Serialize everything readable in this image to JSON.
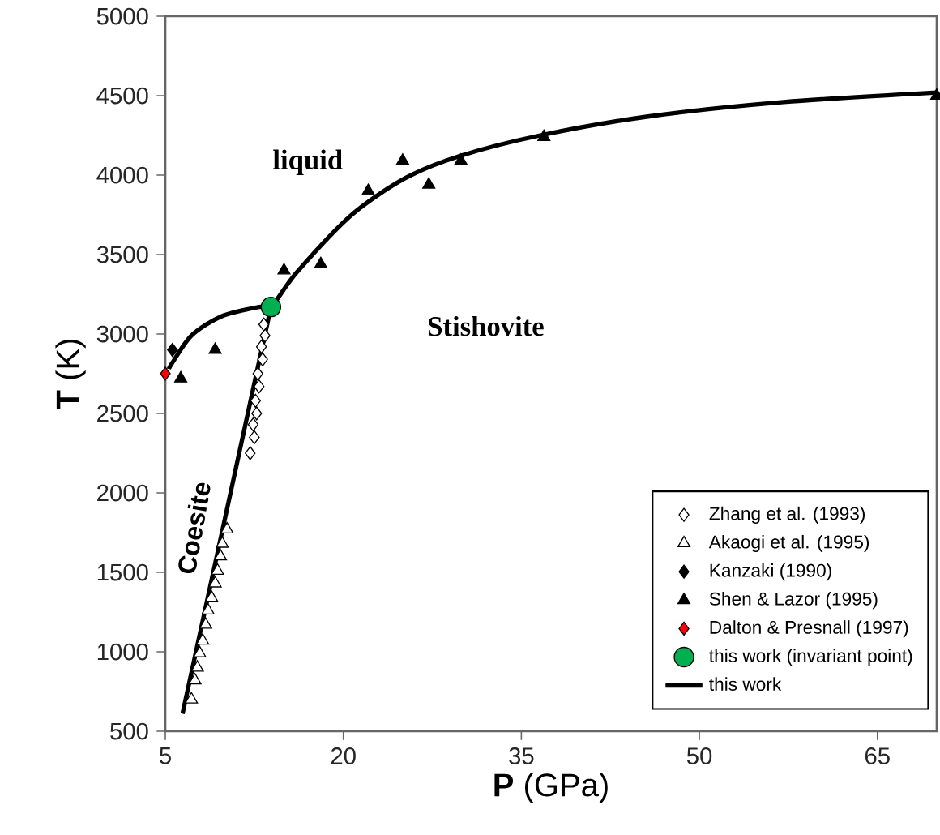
{
  "chart_data": {
    "type": "scatter",
    "xlabel": "**P** (GPa)",
    "ylabel": "**T**  (K)",
    "xlim": [
      5,
      70
    ],
    "xticks": [
      5,
      20,
      35,
      50,
      65
    ],
    "ylim": [
      500,
      5000
    ],
    "yticks": [
      500,
      1000,
      1500,
      2000,
      2500,
      3000,
      3500,
      4000,
      4500,
      5000
    ],
    "grid": false,
    "legend": "bottom right",
    "annotations": [
      "liquid",
      "Stishovite",
      "Coesite"
    ],
    "series": [
      {
        "name": "Zhang et al. (1993)",
        "marker": "diamond",
        "color": "#ffffff",
        "x": [
          12.15,
          12.5,
          12.4,
          12.7,
          12.6,
          12.9,
          12.8,
          13.2,
          13.1,
          13.4,
          13.3
        ],
        "values": [
          2250,
          2350,
          2430,
          2500,
          2580,
          2670,
          2750,
          2840,
          2920,
          2990,
          3060
        ]
      },
      {
        "name": "Akaogi et al. (1995)",
        "marker": "triangle",
        "color": "#ffffff",
        "x": [
          10.2,
          9.8,
          9.65,
          9.4,
          9.2,
          8.9,
          8.6,
          8.4,
          8.15,
          7.9,
          7.7,
          7.5,
          7.2
        ],
        "values": [
          1770,
          1680,
          1600,
          1510,
          1430,
          1340,
          1260,
          1170,
          1070,
          990,
          900,
          820,
          700
        ]
      },
      {
        "name": "Kanzaki (1990)",
        "marker": "diamond",
        "color": "#000000",
        "x": [
          5.6
        ],
        "values": [
          2900
        ]
      },
      {
        "name": "Shen & Lazor (1995)",
        "marker": "triangle",
        "color": "#000000",
        "x": [
          6.3,
          9.2,
          15.0,
          18.1,
          22.1,
          25.0,
          27.2,
          29.9,
          36.9,
          70
        ],
        "values": [
          2720,
          2900,
          3400,
          3440,
          3900,
          4090,
          3940,
          4090,
          4240,
          4500
        ]
      },
      {
        "name": "Dalton & Presnall (1997)",
        "marker": "diamond",
        "color": "#ff0000",
        "x": [
          5.0
        ],
        "values": [
          2750
        ]
      },
      {
        "name": "this work (invariant point)",
        "marker": "circle",
        "color": "#00b050",
        "x": [
          13.9
        ],
        "values": [
          3170
        ]
      },
      {
        "name": "this work",
        "type": "line",
        "marker": "none",
        "color": "#000000",
        "x": [
          5.3,
          5.6,
          7.2,
          9.7,
          12.9,
          13.9,
          16.1,
          20.7,
          25.2,
          29.8,
          36.6,
          45.8,
          57.1,
          70,
          13.9,
          6.45,
          13.9
        ],
        "values": [
          2780,
          2820,
          2990,
          3110,
          3170,
          3170,
          3390,
          3750,
          3980,
          4120,
          4250,
          4370,
          4460,
          4520,
          null,
          610,
          3170
        ]
      }
    ]
  }
}
